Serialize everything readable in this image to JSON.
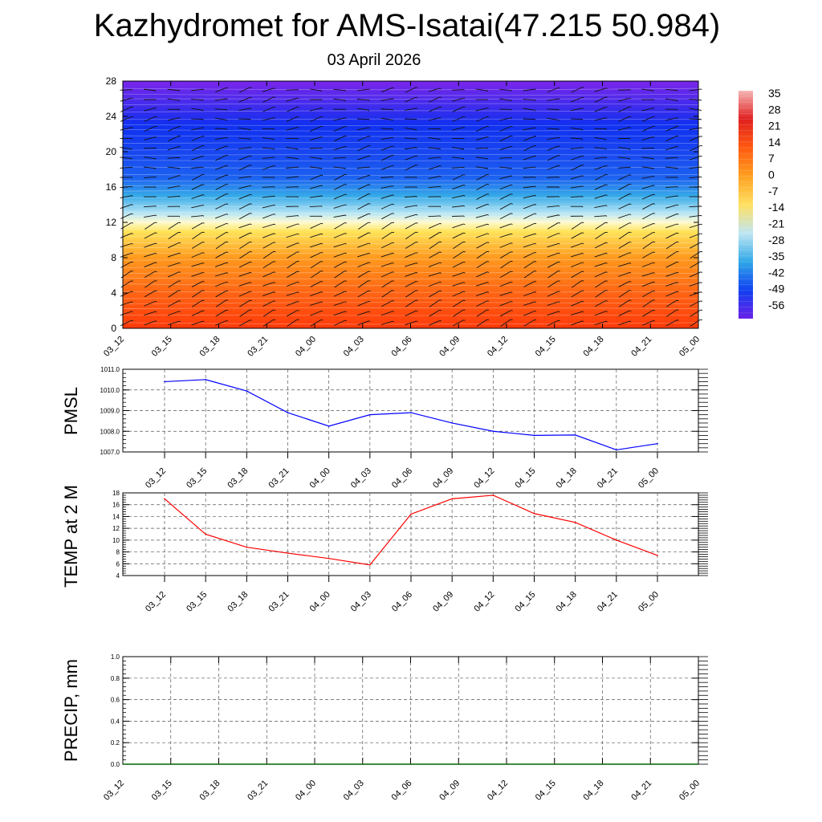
{
  "title": "Kazhydromet for AMS-Isatai(47.215 50.984)",
  "subtitle": "03 April 2026",
  "time_labels": [
    "03_12",
    "03_15",
    "03_18",
    "03_21",
    "04_00",
    "04_03",
    "04_06",
    "04_09",
    "04_12",
    "04_15",
    "04_18",
    "04_21",
    "05_00"
  ],
  "colorbar": {
    "labels": [
      "35",
      "28",
      "21",
      "14",
      "7",
      "0",
      "-7",
      "-14",
      "-21",
      "-28",
      "-35",
      "-42",
      "-49",
      "-56"
    ],
    "colors": [
      "#f6b5b5",
      "#e02020",
      "#ff5a10",
      "#ffa020",
      "#ffe060",
      "#bfe6f2",
      "#30a8e8",
      "#1040f0",
      "#6a20e8"
    ]
  },
  "chart_data": [
    {
      "type": "heatmap",
      "description_kind": "temperature cross-section with wind barbs",
      "ylim": [
        0,
        28
      ],
      "yticks": [
        "0",
        "4",
        "8",
        "12",
        "16",
        "20",
        "24",
        "28"
      ],
      "x": [
        "03_12",
        "03_15",
        "03_18",
        "03_21",
        "04_00",
        "04_03",
        "04_06",
        "04_09",
        "04_12",
        "04_15",
        "04_18",
        "04_21",
        "05_00"
      ],
      "color_stops": [
        {
          "level": 0,
          "color": "#ff3a0a"
        },
        {
          "level": 4,
          "color": "#ff6414"
        },
        {
          "level": 8,
          "color": "#ff9a1e"
        },
        {
          "level": 11,
          "color": "#ffe45a"
        },
        {
          "level": 12,
          "color": "#fffad0"
        },
        {
          "level": 13,
          "color": "#b8e6f4"
        },
        {
          "level": 15,
          "color": "#36aae8"
        },
        {
          "level": 17,
          "color": "#1c62f0"
        },
        {
          "level": 20,
          "color": "#1846f0"
        },
        {
          "level": 23,
          "color": "#1030f0"
        },
        {
          "level": 25,
          "color": "#3c2cec"
        },
        {
          "level": 28,
          "color": "#7a26ea"
        }
      ]
    },
    {
      "type": "line",
      "ylabel": "PMSL",
      "ylim": [
        1007.0,
        1011.0
      ],
      "yticks": [
        "1007.0",
        "1008.0",
        "1009.0",
        "1010.0",
        "1011.0"
      ],
      "x": [
        "03_12",
        "03_15",
        "03_18",
        "03_21",
        "04_00",
        "04_03",
        "04_06",
        "04_09",
        "04_12",
        "04_15",
        "04_18",
        "04_21",
        "05_00"
      ],
      "values": [
        1010.4,
        1010.5,
        1009.95,
        1008.9,
        1008.25,
        1008.8,
        1008.9,
        1008.4,
        1008.0,
        1007.8,
        1007.82,
        1007.1,
        1007.4
      ],
      "color": "#0000ff"
    },
    {
      "type": "line",
      "ylabel": "TEMP at 2 M",
      "ylim": [
        4,
        18
      ],
      "yticks": [
        "4",
        "6",
        "8",
        "10",
        "12",
        "14",
        "16",
        "18"
      ],
      "x": [
        "03_12",
        "03_15",
        "03_18",
        "03_21",
        "04_00",
        "04_03",
        "04_06",
        "04_09",
        "04_12",
        "04_15",
        "04_18",
        "04_21",
        "05_00"
      ],
      "values": [
        17.0,
        11.0,
        8.8,
        7.8,
        6.9,
        5.8,
        14.4,
        17.0,
        17.6,
        14.5,
        13.0,
        10.0,
        7.4
      ],
      "color": "#ff0000"
    },
    {
      "type": "line",
      "ylabel": "PRECIP, mm",
      "ylim": [
        0.0,
        1.0
      ],
      "yticks": [
        "0.0",
        "0.2",
        "0.4",
        "0.6",
        "0.8",
        "1.0"
      ],
      "x": [
        "03_12",
        "03_15",
        "03_18",
        "03_21",
        "04_00",
        "04_03",
        "04_06",
        "04_09",
        "04_12",
        "04_15",
        "04_18",
        "04_21",
        "05_00"
      ],
      "values": [
        0,
        0,
        0,
        0,
        0,
        0,
        0,
        0,
        0,
        0,
        0,
        0,
        0
      ],
      "color": "#006400"
    }
  ]
}
